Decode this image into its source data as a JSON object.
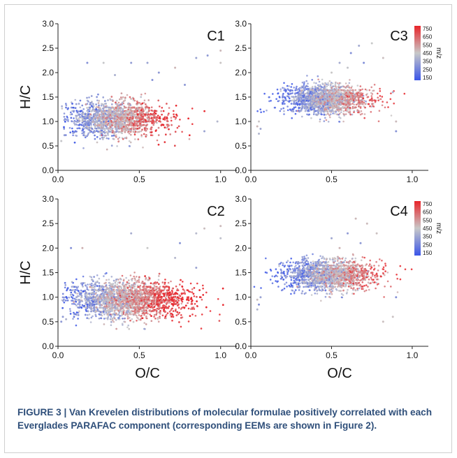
{
  "caption": "FIGURE 3 | Van Krevelen distributions of molecular formulae positively correlated with each Everglades PARAFAC component (corresponding EEMs are shown in Figure 2).",
  "chart_data": {
    "type": "scatter",
    "x_label": "O/C",
    "y_label": "H/C",
    "x_range": [
      0.0,
      1.1
    ],
    "y_range": [
      0.0,
      3.0
    ],
    "x_ticks": [
      "0.0",
      "0.5",
      "1.0"
    ],
    "y_ticks": [
      "0.0",
      "0.5",
      "1.0",
      "1.5",
      "2.0",
      "2.5",
      "3.0"
    ],
    "colorbar": {
      "label": "m/z",
      "range": [
        150,
        750
      ],
      "ticks": [
        "750",
        "650",
        "550",
        "450",
        "350",
        "250",
        "150"
      ],
      "colors": {
        "low": "#3a55e8",
        "mid": "#c8c8c8",
        "high": "#e8242a"
      }
    },
    "panels": [
      {
        "label": "C1",
        "position": "top-left",
        "colorbar": false,
        "dense_clusters": [
          {
            "oc_center": 0.35,
            "hc_center": 1.05,
            "oc_spread": 0.16,
            "hc_spread": 0.2,
            "n": 2600,
            "mz_center": 480
          }
        ],
        "outliers": [
          [
            0.18,
            2.2
          ],
          [
            0.28,
            2.2
          ],
          [
            0.45,
            2.2
          ],
          [
            0.55,
            2.2
          ],
          [
            0.62,
            2.0
          ],
          [
            0.72,
            2.1
          ],
          [
            0.85,
            2.3
          ],
          [
            0.92,
            2.35
          ],
          [
            1.0,
            2.45
          ],
          [
            1.0,
            2.2
          ],
          [
            0.35,
            1.95
          ],
          [
            0.58,
            1.85
          ],
          [
            0.78,
            1.75
          ],
          [
            0.9,
            0.8
          ],
          [
            0.98,
            1.0
          ],
          [
            0.02,
            0.6
          ],
          [
            0.04,
            0.72
          ]
        ]
      },
      {
        "label": "C3",
        "position": "top-right",
        "colorbar": true,
        "dense_clusters": [
          {
            "oc_center": 0.47,
            "hc_center": 1.45,
            "oc_spread": 0.14,
            "hc_spread": 0.16,
            "n": 2000,
            "mz_center": 430
          }
        ],
        "outliers": [
          [
            0.05,
            0.75
          ],
          [
            0.04,
            0.9
          ],
          [
            0.05,
            1.0
          ],
          [
            0.06,
            0.85
          ],
          [
            0.9,
            1.0
          ],
          [
            0.9,
            0.8
          ],
          [
            0.88,
            1.6
          ],
          [
            0.55,
            2.2
          ],
          [
            0.62,
            2.4
          ],
          [
            0.67,
            2.55
          ],
          [
            0.7,
            2.2
          ],
          [
            0.75,
            2.6
          ],
          [
            0.6,
            2.1
          ],
          [
            0.82,
            2.3
          ],
          [
            0.5,
            2.0
          ]
        ]
      },
      {
        "label": "C2",
        "position": "bottom-left",
        "colorbar": false,
        "dense_clusters": [
          {
            "oc_center": 0.42,
            "hc_center": 0.95,
            "oc_spread": 0.2,
            "hc_spread": 0.21,
            "n": 3000,
            "mz_center": 520
          }
        ],
        "outliers": [
          [
            0.08,
            2.0
          ],
          [
            0.15,
            2.0
          ],
          [
            0.45,
            2.3
          ],
          [
            0.55,
            2.0
          ],
          [
            0.72,
            1.8
          ],
          [
            0.75,
            2.1
          ],
          [
            0.85,
            2.3
          ],
          [
            0.9,
            2.4
          ],
          [
            1.0,
            2.45
          ],
          [
            1.0,
            2.2
          ],
          [
            0.85,
            1.6
          ],
          [
            0.02,
            0.5
          ],
          [
            0.03,
            0.6
          ],
          [
            0.05,
            0.55
          ]
        ]
      },
      {
        "label": "C4",
        "position": "bottom-right",
        "colorbar": true,
        "dense_clusters": [
          {
            "oc_center": 0.48,
            "hc_center": 1.45,
            "oc_spread": 0.15,
            "hc_spread": 0.17,
            "n": 1900,
            "mz_center": 440
          }
        ],
        "outliers": [
          [
            0.04,
            0.75
          ],
          [
            0.04,
            0.95
          ],
          [
            0.05,
            0.85
          ],
          [
            0.06,
            1.0
          ],
          [
            0.88,
            0.6
          ],
          [
            0.9,
            1.0
          ],
          [
            0.82,
            0.5
          ],
          [
            0.55,
            2.0
          ],
          [
            0.6,
            2.3
          ],
          [
            0.65,
            2.6
          ],
          [
            0.72,
            2.5
          ],
          [
            0.78,
            2.3
          ],
          [
            0.68,
            2.1
          ],
          [
            0.5,
            2.2
          ]
        ]
      }
    ]
  }
}
